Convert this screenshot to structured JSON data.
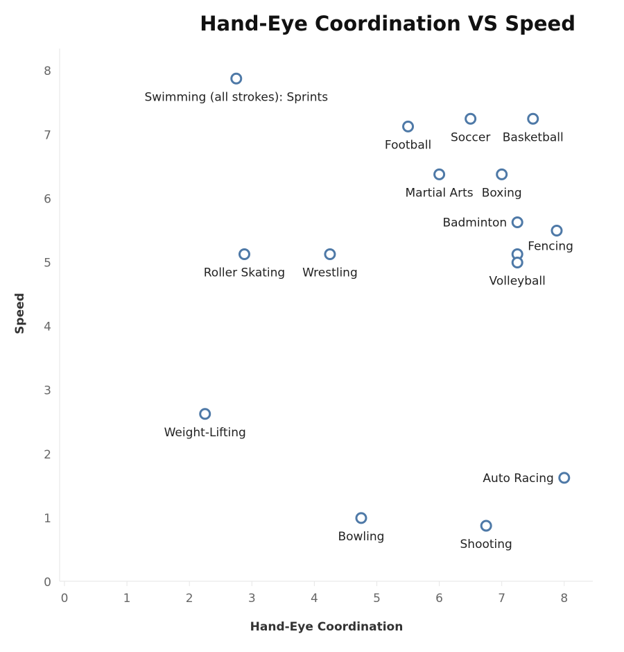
{
  "chart_data": {
    "type": "scatter",
    "title": "Hand-Eye Coordination VS Speed",
    "xlabel": "Hand-Eye Coordination",
    "ylabel": "Speed",
    "xlim": [
      0,
      8.5
    ],
    "ylim": [
      0,
      8.3
    ],
    "xticks": [
      "0",
      "1",
      "2",
      "3",
      "4",
      "5",
      "6",
      "7",
      "8"
    ],
    "yticks": [
      "0",
      "1",
      "2",
      "3",
      "4",
      "5",
      "6",
      "7",
      "8"
    ],
    "grid": false,
    "legend": "none",
    "marker_color": "#4e79a7",
    "points": [
      {
        "label": "Swimming (all strokes): Sprints",
        "x": 2.75,
        "y": 7.88,
        "label_pos": "below"
      },
      {
        "label": "Football",
        "x": 5.5,
        "y": 7.13,
        "label_pos": "below"
      },
      {
        "label": "Soccer",
        "x": 6.5,
        "y": 7.25,
        "label_pos": "below"
      },
      {
        "label": "Basketball",
        "x": 7.5,
        "y": 7.25,
        "label_pos": "below"
      },
      {
        "label": "Martial Arts",
        "x": 6.0,
        "y": 6.38,
        "label_pos": "below"
      },
      {
        "label": "Boxing",
        "x": 7.0,
        "y": 6.38,
        "label_pos": "below"
      },
      {
        "label": "Badminton",
        "x": 7.25,
        "y": 5.63,
        "label_pos": "left"
      },
      {
        "label": "",
        "x": 7.88,
        "y": 5.5,
        "label_pos": "none"
      },
      {
        "label": "Fencing",
        "x": 7.25,
        "y": 5.13,
        "label_pos": "right"
      },
      {
        "label": "Volleyball",
        "x": 7.25,
        "y": 5.0,
        "label_pos": "below"
      },
      {
        "label": "Roller Skating",
        "x": 2.88,
        "y": 5.13,
        "label_pos": "below"
      },
      {
        "label": "Wrestling",
        "x": 4.25,
        "y": 5.13,
        "label_pos": "below"
      },
      {
        "label": "Weight-Lifting",
        "x": 2.25,
        "y": 2.63,
        "label_pos": "below"
      },
      {
        "label": "Auto Racing",
        "x": 8.0,
        "y": 1.63,
        "label_pos": "left"
      },
      {
        "label": "Bowling",
        "x": 4.75,
        "y": 1.0,
        "label_pos": "below"
      },
      {
        "label": "Shooting",
        "x": 6.75,
        "y": 0.88,
        "label_pos": "below"
      }
    ]
  }
}
